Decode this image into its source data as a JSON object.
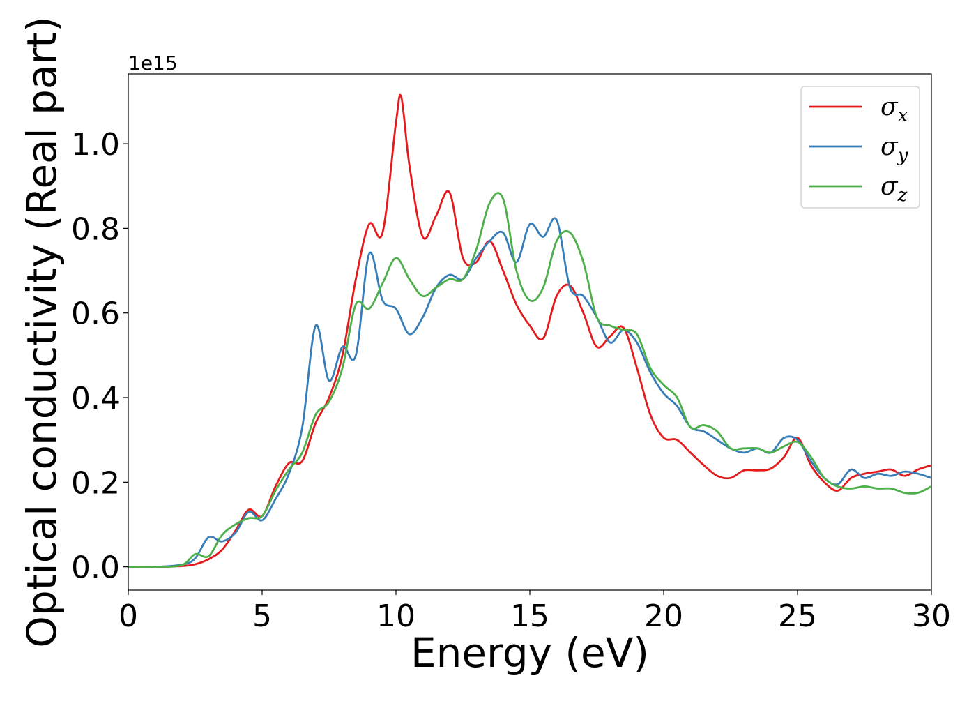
{
  "chart_data": {
    "type": "line",
    "xlabel": "Energy (eV)",
    "ylabel": "Optical conductivity (Real part)",
    "y_offset_text": "1e15",
    "y_scale": 1000000000000000.0,
    "xlim": [
      0,
      30
    ],
    "ylim": [
      -0.055,
      1.165
    ],
    "xticks": [
      0,
      5,
      10,
      15,
      20,
      25,
      30
    ],
    "xtick_labels": [
      "0",
      "5",
      "10",
      "15",
      "20",
      "25",
      "30"
    ],
    "yticks": [
      0.0,
      0.2,
      0.4,
      0.6,
      0.8,
      1.0
    ],
    "ytick_labels": [
      "0.0",
      "0.2",
      "0.4",
      "0.6",
      "0.8",
      "1.0"
    ],
    "grid": false,
    "legend_position": "top-right",
    "series": [
      {
        "name": "σx",
        "legend_base": "σ",
        "legend_sub": "x",
        "color": "#e41a1c",
        "x": [
          0,
          1,
          2,
          2.5,
          3,
          3.5,
          4,
          4.5,
          5,
          5.5,
          6,
          6.5,
          7,
          7.5,
          8,
          8.5,
          9,
          9.5,
          10,
          10.2,
          10.5,
          11,
          11.5,
          12,
          12.5,
          13,
          13.5,
          14,
          14.5,
          15,
          15.5,
          16,
          16.5,
          17,
          17.5,
          18,
          18.5,
          19,
          19.5,
          20,
          20.5,
          21,
          21.5,
          22,
          22.5,
          23,
          23.5,
          24,
          24.5,
          25,
          25.5,
          26,
          26.5,
          27,
          27.5,
          28,
          28.5,
          29,
          29.5,
          30
        ],
        "values": [
          0.0,
          0.0,
          0.002,
          0.006,
          0.018,
          0.04,
          0.085,
          0.135,
          0.12,
          0.19,
          0.245,
          0.25,
          0.34,
          0.4,
          0.5,
          0.68,
          0.81,
          0.79,
          1.05,
          1.11,
          0.95,
          0.78,
          0.83,
          0.885,
          0.73,
          0.72,
          0.77,
          0.7,
          0.62,
          0.57,
          0.54,
          0.64,
          0.665,
          0.6,
          0.52,
          0.545,
          0.565,
          0.47,
          0.36,
          0.305,
          0.3,
          0.27,
          0.24,
          0.215,
          0.21,
          0.228,
          0.228,
          0.232,
          0.26,
          0.305,
          0.24,
          0.2,
          0.18,
          0.21,
          0.22,
          0.225,
          0.23,
          0.215,
          0.23,
          0.24
        ]
      },
      {
        "name": "σy",
        "legend_base": "σ",
        "legend_sub": "y",
        "color": "#377eb8",
        "x": [
          0,
          1,
          2,
          2.5,
          3,
          3.5,
          4,
          4.5,
          5,
          5.5,
          6,
          6.5,
          7,
          7.5,
          8,
          8.5,
          9,
          9.5,
          10,
          10.5,
          11,
          11.5,
          12,
          12.5,
          13,
          13.5,
          14,
          14.5,
          15,
          15.5,
          16,
          16.5,
          17,
          17.5,
          18,
          18.5,
          19,
          19.5,
          20,
          20.5,
          21,
          21.5,
          22,
          22.5,
          23,
          23.5,
          24,
          24.5,
          25,
          25.5,
          26,
          26.5,
          27,
          27.5,
          28,
          28.5,
          29,
          29.5,
          30
        ],
        "values": [
          0.0,
          0.0,
          0.005,
          0.02,
          0.07,
          0.06,
          0.08,
          0.13,
          0.11,
          0.16,
          0.22,
          0.33,
          0.57,
          0.44,
          0.52,
          0.5,
          0.74,
          0.63,
          0.61,
          0.55,
          0.59,
          0.66,
          0.69,
          0.68,
          0.73,
          0.77,
          0.79,
          0.72,
          0.81,
          0.78,
          0.82,
          0.66,
          0.64,
          0.59,
          0.53,
          0.56,
          0.53,
          0.46,
          0.41,
          0.38,
          0.33,
          0.32,
          0.3,
          0.28,
          0.27,
          0.28,
          0.27,
          0.305,
          0.3,
          0.25,
          0.21,
          0.195,
          0.23,
          0.21,
          0.22,
          0.215,
          0.225,
          0.22,
          0.21
        ]
      },
      {
        "name": "σz",
        "legend_base": "σ",
        "legend_sub": "z",
        "color": "#4daf4a",
        "x": [
          0,
          1,
          2,
          2.5,
          3,
          3.5,
          4,
          4.5,
          5,
          5.5,
          6,
          6.5,
          7,
          7.5,
          8,
          8.5,
          9,
          9.5,
          10,
          10.5,
          11,
          11.5,
          12,
          12.5,
          13,
          13.5,
          14,
          14.5,
          15,
          15.5,
          16,
          16.5,
          17,
          17.5,
          18,
          18.5,
          19,
          19.5,
          20,
          20.5,
          21,
          21.5,
          22,
          22.5,
          23,
          23.5,
          24,
          24.5,
          25,
          25.5,
          26,
          26.5,
          27,
          27.5,
          28,
          28.5,
          29,
          29.5,
          30
        ],
        "values": [
          0.0,
          0.0,
          0.004,
          0.03,
          0.025,
          0.075,
          0.1,
          0.115,
          0.12,
          0.18,
          0.23,
          0.27,
          0.36,
          0.39,
          0.47,
          0.62,
          0.61,
          0.67,
          0.73,
          0.68,
          0.64,
          0.66,
          0.68,
          0.68,
          0.75,
          0.86,
          0.87,
          0.7,
          0.63,
          0.66,
          0.77,
          0.79,
          0.72,
          0.59,
          0.57,
          0.56,
          0.55,
          0.47,
          0.43,
          0.4,
          0.33,
          0.335,
          0.32,
          0.28,
          0.28,
          0.28,
          0.27,
          0.285,
          0.295,
          0.26,
          0.21,
          0.19,
          0.185,
          0.19,
          0.185,
          0.185,
          0.175,
          0.175,
          0.19
        ]
      }
    ]
  }
}
